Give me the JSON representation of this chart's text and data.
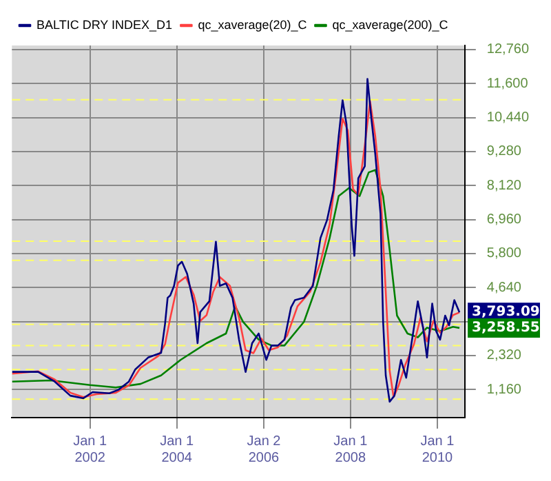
{
  "chart_data": {
    "type": "line",
    "legend": "top left",
    "grid": true,
    "marker": "none",
    "line_style": "solid",
    "xlim": [
      "2000-03-15",
      "2010-08-20"
    ],
    "xticks": [
      {
        "value": "2002-01-01",
        "label": "Jan 1\n2002"
      },
      {
        "value": "2004-01-01",
        "label": "Jan 1\n2004"
      },
      {
        "value": "2006-01-02",
        "label": "Jan 2\n2006"
      },
      {
        "value": "2008-01-01",
        "label": "Jan 1\n2008"
      },
      {
        "value": "2010-01-01",
        "label": "Jan 1\n2010"
      }
    ],
    "ylim": [
      200,
      12900
    ],
    "yticks": [
      {
        "value": 1160,
        "label": "1,160"
      },
      {
        "value": 2320,
        "label": "2,320"
      },
      {
        "value": 3480,
        "label": null
      },
      {
        "value": 4640,
        "label": "4,640"
      },
      {
        "value": 5800,
        "label": "5,800"
      },
      {
        "value": 6960,
        "label": "6,960"
      },
      {
        "value": 8120,
        "label": "8,120"
      },
      {
        "value": 9280,
        "label": "9,280"
      },
      {
        "value": 10440,
        "label": "10,440"
      },
      {
        "value": 11600,
        "label": "11,600"
      },
      {
        "value": 12760,
        "label": "12,760"
      }
    ],
    "series": [
      {
        "name": "BALTIC DRY INDEX_D1",
        "color": "#000080",
        "x": [
          "2000-03-17",
          "2000-10-22",
          "2001-03-10",
          "2001-07-19",
          "2001-11-06",
          "2002-01-23",
          "2002-06-13",
          "2002-08-28",
          "2002-11-24",
          "2003-01-16",
          "2003-05-05",
          "2003-08-22",
          "2003-09-24",
          "2003-10-16",
          "2003-11-07",
          "2003-12-09",
          "2004-01-11",
          "2004-02-13",
          "2004-03-28",
          "2004-05-22",
          "2004-06-24",
          "2004-07-16",
          "2004-10-01",
          "2004-11-25",
          "2004-12-28",
          "2005-02-18",
          "2005-04-14",
          "2005-06-08",
          "2005-08-02",
          "2005-09-26",
          "2005-11-20",
          "2006-01-23",
          "2006-03-08",
          "2006-05-01",
          "2006-06-25",
          "2006-08-19",
          "2006-09-21",
          "2006-12-06",
          "2007-02-19",
          "2007-04-24",
          "2007-06-18",
          "2007-08-11",
          "2007-09-24",
          "2007-10-27",
          "2007-11-29",
          "2008-01-12",
          "2008-02-03",
          "2008-03-07",
          "2008-05-01",
          "2008-05-23",
          "2008-06-25",
          "2008-07-28",
          "2008-09-10",
          "2008-10-02",
          "2008-10-24",
          "2008-11-26",
          "2009-01-05",
          "2009-03-01",
          "2009-04-14",
          "2009-06-18",
          "2009-07-21",
          "2009-09-03",
          "2009-10-06",
          "2009-11-19",
          "2009-12-22",
          "2010-01-24",
          "2010-03-08",
          "2010-04-10",
          "2010-05-24",
          "2010-07-06"
        ],
        "values": [
          1760,
          1760,
          1430,
          950,
          860,
          1070,
          1030,
          1150,
          1430,
          1840,
          2250,
          2410,
          3390,
          4290,
          4370,
          4700,
          5390,
          5520,
          5110,
          4090,
          2740,
          3800,
          4170,
          6200,
          4700,
          4780,
          4290,
          2860,
          1760,
          2740,
          3070,
          2170,
          2660,
          2660,
          2860,
          3960,
          4210,
          4290,
          4700,
          6330,
          6940,
          7960,
          9800,
          11030,
          10210,
          6740,
          5720,
          8370,
          8780,
          11760,
          10410,
          9190,
          7150,
          3470,
          1640,
          740,
          950,
          2170,
          1560,
          3270,
          4170,
          3270,
          2250,
          4090,
          3150,
          2860,
          3680,
          3350,
          4210,
          3790
        ]
      },
      {
        "name": "qc_xaverage(20)_C",
        "color": "#ff4040",
        "x": [
          "2000-03-17",
          "2000-10-22",
          "2001-03-10",
          "2001-07-19",
          "2001-11-06",
          "2002-02-24",
          "2002-08-06",
          "2002-11-24",
          "2003-03-02",
          "2003-07-29",
          "2003-09-24",
          "2003-11-07",
          "2004-01-11",
          "2004-03-17",
          "2004-05-22",
          "2004-07-16",
          "2004-09-08",
          "2004-11-03",
          "2004-12-28",
          "2005-03-23",
          "2005-06-08",
          "2005-08-02",
          "2005-10-07",
          "2005-12-12",
          "2006-02-14",
          "2006-05-01",
          "2006-07-17",
          "2006-10-13",
          "2007-01-28",
          "2007-04-24",
          "2007-07-10",
          "2007-09-02",
          "2007-10-27",
          "2007-12-10",
          "2008-01-23",
          "2008-03-07",
          "2008-05-01",
          "2008-06-14",
          "2008-07-28",
          "2008-09-10",
          "2008-10-24",
          "2008-11-26",
          "2008-12-29",
          "2009-02-10",
          "2009-04-06",
          "2009-06-18",
          "2009-08-12",
          "2009-10-06",
          "2009-11-30",
          "2010-01-24",
          "2010-03-19",
          "2010-05-13",
          "2010-07-06"
        ],
        "values": [
          1700,
          1780,
          1500,
          1050,
          900,
          1000,
          1050,
          1300,
          1900,
          2300,
          2700,
          3600,
          4800,
          5000,
          4400,
          3500,
          3700,
          4500,
          5000,
          4700,
          3600,
          2500,
          2400,
          2900,
          2500,
          2600,
          3000,
          4000,
          4500,
          5500,
          6800,
          8500,
          10400,
          10000,
          8000,
          7800,
          9500,
          11000,
          9800,
          8000,
          4500,
          1800,
          900,
          1300,
          2000,
          2700,
          3600,
          2800,
          3500,
          3100,
          3300,
          3700,
          3790
        ]
      },
      {
        "name": "qc_xaverage(200)_C",
        "color": "#008000",
        "x": [
          "2000-03-17",
          "2001-02-06",
          "2002-01-01",
          "2002-08-06",
          "2003-03-02",
          "2003-08-22",
          "2004-02-02",
          "2004-09-08",
          "2005-02-18",
          "2005-05-06",
          "2005-07-11",
          "2005-11-20",
          "2006-03-08",
          "2006-06-25",
          "2006-12-06",
          "2007-03-24",
          "2007-07-10",
          "2007-09-24",
          "2007-12-20",
          "2008-03-18",
          "2008-06-03",
          "2008-07-28",
          "2008-10-02",
          "2008-11-26",
          "2009-01-27",
          "2009-04-25",
          "2009-07-21",
          "2009-10-06",
          "2010-01-24",
          "2010-05-13",
          "2010-07-06"
        ],
        "values": [
          1430,
          1470,
          1310,
          1230,
          1350,
          1640,
          2170,
          2740,
          3070,
          4000,
          3470,
          2860,
          2660,
          2660,
          3470,
          4700,
          6330,
          7760,
          8040,
          7760,
          8570,
          8650,
          7760,
          5920,
          3680,
          3070,
          2940,
          3270,
          3150,
          3300,
          3260
        ]
      }
    ],
    "ref_lines": [
      {
        "axis": "y",
        "value": 11050,
        "color": "#ffff66",
        "line_style": "dashed"
      },
      {
        "axis": "y",
        "value": 6220,
        "color": "#ffff66",
        "line_style": "dashed"
      },
      {
        "axis": "y",
        "value": 5570,
        "color": "#ffff66",
        "line_style": "dashed"
      },
      {
        "axis": "y",
        "value": 3380,
        "color": "#ffff66",
        "line_style": "dashed"
      },
      {
        "axis": "y",
        "value": 2660,
        "color": "#ffff66",
        "line_style": "dashed"
      },
      {
        "axis": "y",
        "value": 1840,
        "color": "#ffff66",
        "line_style": "dashed"
      },
      {
        "axis": "y",
        "value": 830,
        "color": "#ffff66",
        "line_style": "dashed"
      }
    ],
    "annotations": [
      {
        "text": "3,793.09",
        "x": "2010-07-06",
        "y": 3793.09
      },
      {
        "text": "3,258.55",
        "x": "2010-07-06",
        "y": 3258.55
      }
    ]
  }
}
